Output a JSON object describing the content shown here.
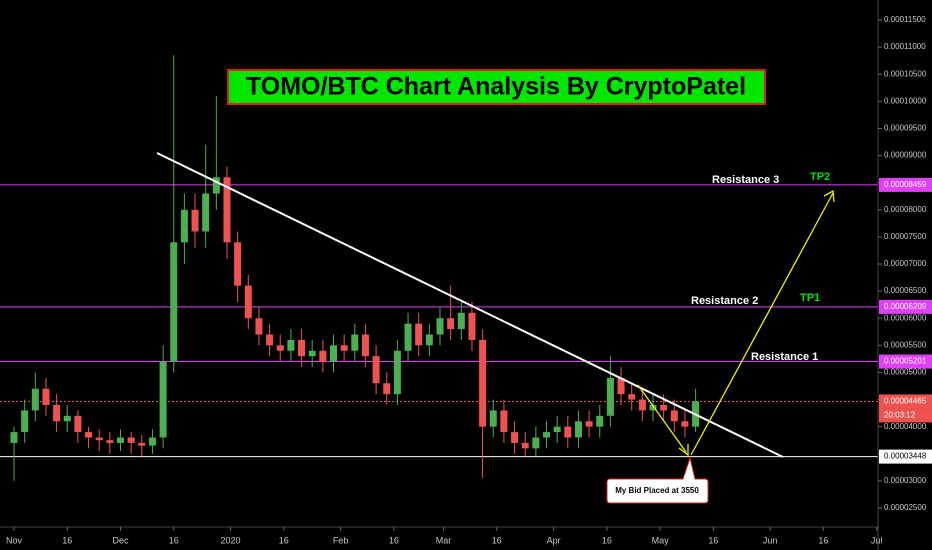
{
  "chart_data": {
    "type": "candlestick",
    "title": "TOMO/BTC Chart Analysis By CryptoPatel",
    "x": [
      "2019-11-01",
      "2019-11-04",
      "2019-11-07",
      "2019-11-10",
      "2019-11-13",
      "2019-11-16",
      "2019-11-19",
      "2019-11-22",
      "2019-11-25",
      "2019-11-28",
      "2019-12-01",
      "2019-12-04",
      "2019-12-07",
      "2019-12-10",
      "2019-12-13",
      "2019-12-16",
      "2019-12-19",
      "2019-12-22",
      "2019-12-25",
      "2019-12-28",
      "2019-12-31",
      "2020-01-03",
      "2020-01-06",
      "2020-01-09",
      "2020-01-12",
      "2020-01-15",
      "2020-01-18",
      "2020-01-21",
      "2020-01-24",
      "2020-01-27",
      "2020-01-30",
      "2020-02-02",
      "2020-02-05",
      "2020-02-08",
      "2020-02-11",
      "2020-02-14",
      "2020-02-17",
      "2020-02-20",
      "2020-02-23",
      "2020-02-26",
      "2020-02-29",
      "2020-03-03",
      "2020-03-06",
      "2020-03-09",
      "2020-03-12",
      "2020-03-15",
      "2020-03-18",
      "2020-03-21",
      "2020-03-24",
      "2020-03-27",
      "2020-03-30",
      "2020-04-02",
      "2020-04-05",
      "2020-04-08",
      "2020-04-11",
      "2020-04-14",
      "2020-04-17",
      "2020-04-20",
      "2020-04-23",
      "2020-04-26",
      "2020-04-29",
      "2020-05-02",
      "2020-05-05",
      "2020-05-08",
      "2020-05-11"
    ],
    "open": [
      3.7e-05,
      3.9e-05,
      4.3e-05,
      4.7e-05,
      4.4e-05,
      4.1e-05,
      4.2e-05,
      3.9e-05,
      3.8e-05,
      3.75e-05,
      3.7e-05,
      3.8e-05,
      3.7e-05,
      3.65e-05,
      3.8e-05,
      5.2e-05,
      7.4e-05,
      8e-05,
      7.6e-05,
      8.3e-05,
      8.6e-05,
      7.4e-05,
      6.6e-05,
      6e-05,
      5.7e-05,
      5.5e-05,
      5.4e-05,
      5.6e-05,
      5.3e-05,
      5.4e-05,
      5.2e-05,
      5.5e-05,
      5.4e-05,
      5.7e-05,
      5.3e-05,
      4.8e-05,
      4.6e-05,
      5.4e-05,
      5.9e-05,
      5.5e-05,
      5.7e-05,
      6e-05,
      5.8e-05,
      6.1e-05,
      5.6e-05,
      4e-05,
      4.3e-05,
      3.9e-05,
      3.7e-05,
      3.6e-05,
      3.8e-05,
      3.9e-05,
      4e-05,
      3.8e-05,
      4.1e-05,
      4e-05,
      4.2e-05,
      4.9e-05,
      4.6e-05,
      4.5e-05,
      4.3e-05,
      4.4e-05,
      4.3e-05,
      4.1e-05,
      4e-05
    ],
    "high": [
      4e-05,
      4.5e-05,
      5e-05,
      4.9e-05,
      4.6e-05,
      4.4e-05,
      4.3e-05,
      4e-05,
      3.95e-05,
      3.9e-05,
      3.95e-05,
      3.9e-05,
      3.85e-05,
      3.95e-05,
      5.5e-05,
      0.0001085,
      8.3e-05,
      8.3e-05,
      9.2e-05,
      0.000101,
      8.8e-05,
      7.6e-05,
      6.8e-05,
      6.2e-05,
      5.9e-05,
      5.7e-05,
      5.8e-05,
      5.8e-05,
      5.6e-05,
      5.6e-05,
      5.7e-05,
      5.7e-05,
      5.9e-05,
      5.9e-05,
      5.5e-05,
      5e-05,
      5.6e-05,
      6.1e-05,
      6.1e-05,
      5.9e-05,
      6.2e-05,
      6.6e-05,
      6.3e-05,
      6.3e-05,
      5.8e-05,
      4.5e-05,
      4.5e-05,
      4.1e-05,
      3.9e-05,
      4e-05,
      4.1e-05,
      4.2e-05,
      4.2e-05,
      4.3e-05,
      4.3e-05,
      4.4e-05,
      5.3e-05,
      5.1e-05,
      4.8e-05,
      4.7e-05,
      4.6e-05,
      4.6e-05,
      4.5e-05,
      4.3e-05,
      4.7e-05
    ],
    "low": [
      3e-05,
      3.7e-05,
      4.1e-05,
      4.2e-05,
      3.9e-05,
      3.9e-05,
      3.7e-05,
      3.6e-05,
      3.55e-05,
      3.5e-05,
      3.55e-05,
      3.5e-05,
      3.45e-05,
      3.5e-05,
      3.6e-05,
      5e-05,
      7e-05,
      7.3e-05,
      7.3e-05,
      8e-05,
      7.1e-05,
      6.3e-05,
      5.8e-05,
      5.5e-05,
      5.3e-05,
      5.2e-05,
      5.2e-05,
      5.1e-05,
      5.1e-05,
      5e-05,
      5e-05,
      5.2e-05,
      5.2e-05,
      5.1e-05,
      4.6e-05,
      4.4e-05,
      4.4e-05,
      5.2e-05,
      5.3e-05,
      5.3e-05,
      5.5e-05,
      5.6e-05,
      5.6e-05,
      5.4e-05,
      3.05e-05,
      3.8e-05,
      3.7e-05,
      3.5e-05,
      3.45e-05,
      3.45e-05,
      3.6e-05,
      3.7e-05,
      3.6e-05,
      3.6e-05,
      3.8e-05,
      3.8e-05,
      4e-05,
      4.4e-05,
      4.3e-05,
      4.1e-05,
      4.1e-05,
      4.1e-05,
      3.9e-05,
      3.8e-05,
      3.9e-05
    ],
    "close": [
      3.9e-05,
      4.3e-05,
      4.7e-05,
      4.4e-05,
      4.1e-05,
      4.2e-05,
      3.9e-05,
      3.8e-05,
      3.75e-05,
      3.7e-05,
      3.8e-05,
      3.7e-05,
      3.65e-05,
      3.8e-05,
      5.2e-05,
      7.4e-05,
      8e-05,
      7.6e-05,
      8.3e-05,
      8.6e-05,
      7.4e-05,
      6.6e-05,
      6e-05,
      5.7e-05,
      5.5e-05,
      5.4e-05,
      5.6e-05,
      5.3e-05,
      5.4e-05,
      5.2e-05,
      5.5e-05,
      5.4e-05,
      5.7e-05,
      5.3e-05,
      4.8e-05,
      4.6e-05,
      5.4e-05,
      5.9e-05,
      5.5e-05,
      5.7e-05,
      6e-05,
      5.8e-05,
      6.1e-05,
      5.6e-05,
      4e-05,
      4.3e-05,
      3.9e-05,
      3.7e-05,
      3.6e-05,
      3.8e-05,
      3.9e-05,
      4e-05,
      3.8e-05,
      4.1e-05,
      4e-05,
      4.2e-05,
      4.9e-05,
      4.6e-05,
      4.5e-05,
      4.3e-05,
      4.4e-05,
      4.3e-05,
      4.1e-05,
      4e-05,
      4.465e-05
    ],
    "up_color": "#4caf50",
    "down_color": "#ef5350",
    "ylim": [
      1.965e-05,
      0.00011869
    ],
    "yticks": [
      {
        "value": 2.5e-05,
        "label": "0.00002500"
      },
      {
        "value": 3e-05,
        "label": "0.00003000"
      },
      {
        "value": 3.5e-05,
        "label": "0.00003500"
      },
      {
        "value": 4e-05,
        "label": "0.00004000"
      },
      {
        "value": 4.5e-05,
        "label": "0.00004500"
      },
      {
        "value": 5e-05,
        "label": "0.00005000"
      },
      {
        "value": 5.5e-05,
        "label": "0.00005500"
      },
      {
        "value": 6e-05,
        "label": "0.00006000"
      },
      {
        "value": 6.5e-05,
        "label": "0.00006500"
      },
      {
        "value": 7e-05,
        "label": "0.00007000"
      },
      {
        "value": 7.5e-05,
        "label": "0.00007500"
      },
      {
        "value": 8e-05,
        "label": "0.00008000"
      },
      {
        "value": 8.5e-05,
        "label": "0.00008500"
      },
      {
        "value": 9e-05,
        "label": "0.00009000"
      },
      {
        "value": 9.5e-05,
        "label": "0.00009500"
      },
      {
        "value": 0.0001,
        "label": "0.00010000"
      },
      {
        "value": 0.000105,
        "label": "0.00010500"
      },
      {
        "value": 0.00011,
        "label": "0.00011000"
      },
      {
        "value": 0.000115,
        "label": "0.00011500"
      }
    ],
    "xticks": [
      {
        "value": "2019-11-01",
        "label": "Nov"
      },
      {
        "value": "2019-11-16",
        "label": "16"
      },
      {
        "value": "2019-12-01",
        "label": "Dec"
      },
      {
        "value": "2019-12-16",
        "label": "16"
      },
      {
        "value": "2020-01-01",
        "label": "2020"
      },
      {
        "value": "2020-01-16",
        "label": "16"
      },
      {
        "value": "2020-02-01",
        "label": "Feb"
      },
      {
        "value": "2020-02-16",
        "label": "16"
      },
      {
        "value": "2020-03-01",
        "label": "Mar"
      },
      {
        "value": "2020-03-16",
        "label": "16"
      },
      {
        "value": "2020-04-01",
        "label": "Apr"
      },
      {
        "value": "2020-04-16",
        "label": "16"
      },
      {
        "value": "2020-05-01",
        "label": "May"
      },
      {
        "value": "2020-05-16",
        "label": "16"
      },
      {
        "value": "2020-06-01",
        "label": "Jun"
      },
      {
        "value": "2020-06-16",
        "label": "16"
      },
      {
        "value": "2020-07-01",
        "label": "Jul"
      }
    ],
    "levels": [
      {
        "value": 8.459e-05,
        "label": "0.00008459",
        "color": "#e040fb"
      },
      {
        "value": 6.209e-05,
        "label": "0.00006209",
        "color": "#e040fb"
      },
      {
        "value": 5.201e-05,
        "label": "0.00005201",
        "color": "#e040fb"
      },
      {
        "value": 4.465e-05,
        "label": "0.00004465",
        "color": "#ef5350"
      },
      {
        "value": 3.448e-05,
        "label": "0.00003448",
        "color": "#ffffff"
      }
    ],
    "annotations": {
      "resistance_3": "Resistance 3",
      "tp2": "TP2",
      "resistance_2": "Resistance 2",
      "tp1": "TP1",
      "resistance_1": "Resistance 1",
      "bid": "My Bid Placed at 3550",
      "countdown": "20:03:12"
    }
  }
}
